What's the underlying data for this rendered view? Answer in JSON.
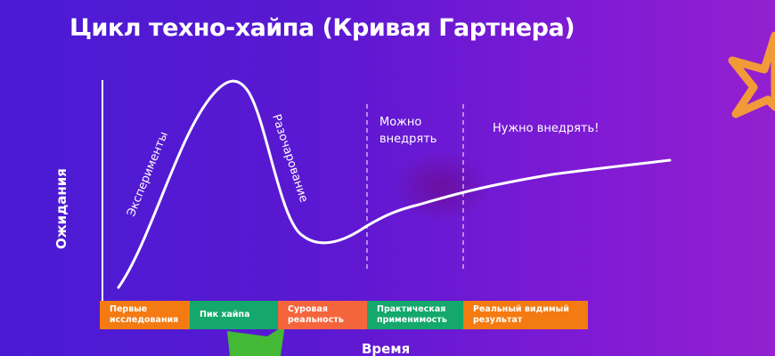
{
  "title": "Цикл техно-хайпа (Кривая Гартнера)",
  "y_axis_label": "Ожидания",
  "x_axis_label": "Время",
  "curve_labels": {
    "rise": "Эксперименты",
    "fall": "Разочарование",
    "zone1": "Можно внедрять",
    "zone2": "Нужно внедрять!"
  },
  "phases": [
    {
      "label": "Первые исследования",
      "color": "#f47b12"
    },
    {
      "label": "Пик хайпа",
      "color": "#14a86c"
    },
    {
      "label": "Суровая реальность",
      "color": "#f5653c"
    },
    {
      "label": "Практическая применимость",
      "color": "#14a86c"
    },
    {
      "label": "Реальный видимый результат",
      "color": "#f47b12"
    }
  ]
}
